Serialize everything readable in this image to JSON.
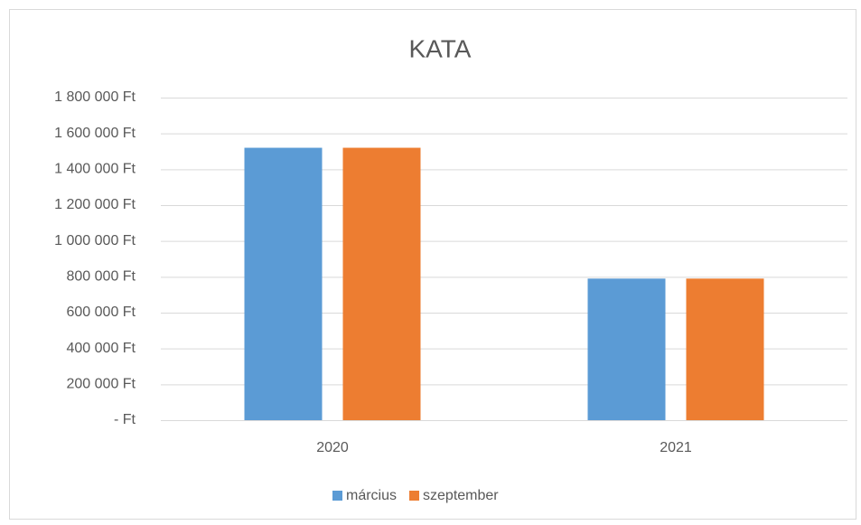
{
  "chart_data": {
    "type": "bar",
    "title": "KATA",
    "categories": [
      "2020",
      "2021"
    ],
    "series": [
      {
        "name": "március",
        "color": "#5b9bd5",
        "values": [
          1520000,
          790000
        ]
      },
      {
        "name": "szeptember",
        "color": "#ed7d31",
        "values": [
          1520000,
          790000
        ]
      }
    ],
    "ylim": [
      0,
      1800000
    ],
    "yticks": [
      {
        "value": 0,
        "label": "-   Ft"
      },
      {
        "value": 200000,
        "label": "200 000 Ft"
      },
      {
        "value": 400000,
        "label": "400 000 Ft"
      },
      {
        "value": 600000,
        "label": "600 000 Ft"
      },
      {
        "value": 800000,
        "label": "800 000 Ft"
      },
      {
        "value": 1000000,
        "label": "1 000 000 Ft"
      },
      {
        "value": 1200000,
        "label": "1 200 000 Ft"
      },
      {
        "value": 1400000,
        "label": "1 400 000 Ft"
      },
      {
        "value": 1600000,
        "label": "1 600 000 Ft"
      },
      {
        "value": 1800000,
        "label": "1 800 000 Ft"
      }
    ],
    "grid": true,
    "legend": "bottom"
  }
}
